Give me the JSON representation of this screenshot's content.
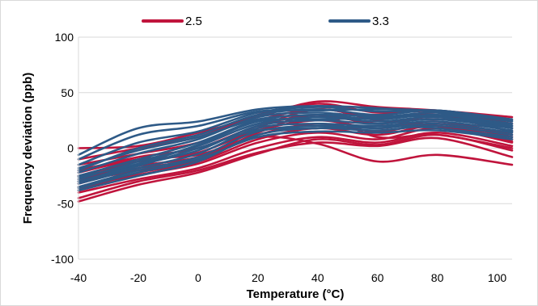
{
  "chart_data": {
    "type": "line",
    "title": "",
    "xlabel": "Temperature (°C)",
    "ylabel": "Frequency deviation (ppb)",
    "xlim": [
      -40,
      105
    ],
    "ylim": [
      -100,
      100
    ],
    "x_ticks": [
      -40,
      -20,
      0,
      20,
      40,
      60,
      80,
      100
    ],
    "y_ticks": [
      -100,
      -50,
      0,
      50,
      100
    ],
    "x_tick_labels": [
      "-40",
      "-20",
      "0",
      "20",
      "40",
      "60",
      "80",
      "100"
    ],
    "y_tick_labels": [
      "-100",
      "-50",
      "0",
      "50",
      "100"
    ],
    "grid": "horizontal",
    "legend_position": "top",
    "x": [
      -40,
      -20,
      0,
      20,
      40,
      60,
      80,
      105
    ],
    "series": [
      {
        "name": "2.5",
        "color": "#c0143c",
        "curves": [
          [
            -48,
            -33,
            -22,
            -5,
            8,
            3,
            12,
            -2
          ],
          [
            -45,
            -30,
            -20,
            -4,
            5,
            2,
            9,
            -8
          ],
          [
            -40,
            -28,
            -18,
            0,
            10,
            5,
            14,
            2
          ],
          [
            -35,
            -24,
            -14,
            5,
            14,
            8,
            18,
            5
          ],
          [
            -30,
            -20,
            -12,
            8,
            18,
            12,
            20,
            8
          ],
          [
            -28,
            -16,
            -8,
            12,
            22,
            15,
            22,
            10
          ],
          [
            -25,
            -12,
            -4,
            16,
            25,
            18,
            24,
            12
          ],
          [
            -20,
            -8,
            0,
            20,
            30,
            22,
            28,
            15
          ],
          [
            -15,
            -5,
            5,
            25,
            35,
            28,
            30,
            18
          ],
          [
            -10,
            0,
            10,
            30,
            40,
            32,
            33,
            22
          ],
          [
            0,
            2,
            14,
            28,
            42,
            37,
            34,
            28
          ],
          [
            -22,
            -10,
            -6,
            10,
            4,
            -12,
            -6,
            -15
          ],
          [
            -32,
            -18,
            -10,
            14,
            30,
            10,
            12,
            0
          ],
          [
            -38,
            -22,
            -12,
            18,
            35,
            25,
            20,
            6
          ]
        ]
      },
      {
        "name": "3.3",
        "color": "#2e5a87",
        "curves": [
          [
            -38,
            -25,
            -12,
            12,
            18,
            16,
            20,
            12
          ],
          [
            -35,
            -20,
            -8,
            15,
            20,
            18,
            22,
            14
          ],
          [
            -32,
            -18,
            -5,
            18,
            22,
            20,
            24,
            16
          ],
          [
            -30,
            -15,
            -2,
            20,
            25,
            22,
            26,
            18
          ],
          [
            -28,
            -12,
            2,
            22,
            28,
            24,
            28,
            20
          ],
          [
            -25,
            -10,
            5,
            25,
            30,
            26,
            30,
            22
          ],
          [
            -22,
            -5,
            8,
            28,
            32,
            28,
            32,
            24
          ],
          [
            -20,
            0,
            12,
            30,
            35,
            30,
            34,
            25
          ],
          [
            -15,
            5,
            15,
            32,
            37,
            33,
            34,
            26
          ],
          [
            -10,
            12,
            20,
            33,
            34,
            35,
            33,
            20
          ],
          [
            -6,
            18,
            24,
            35,
            38,
            36,
            32,
            18
          ],
          [
            -36,
            -22,
            -10,
            10,
            15,
            14,
            16,
            8
          ],
          [
            -30,
            -16,
            0,
            16,
            18,
            20,
            18,
            10
          ],
          [
            -26,
            -14,
            3,
            24,
            26,
            27,
            29,
            15
          ],
          [
            -18,
            -2,
            10,
            26,
            30,
            29,
            28,
            20
          ]
        ]
      }
    ]
  }
}
